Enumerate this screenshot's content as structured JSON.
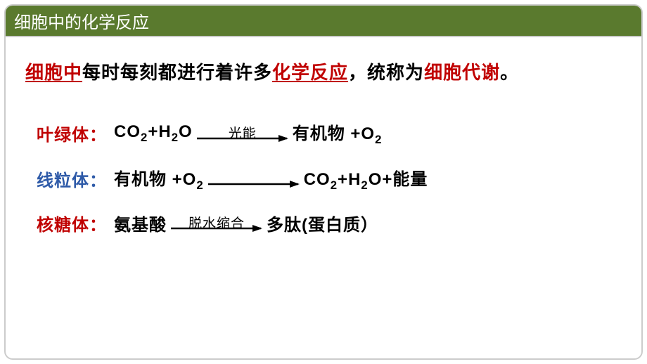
{
  "colors": {
    "header_bg": "#5a7a2e",
    "header_text": "#ffffff",
    "red": "#c00000",
    "black": "#000000",
    "blue": "#2e5aa8",
    "border": "#cccccc"
  },
  "header": {
    "title": "细胞中的化学反应"
  },
  "intro": {
    "p1": "细胞中",
    "p2": "每时每刻都进行着许多",
    "p3": "化学反应",
    "p4": "，统称为",
    "p5": "细胞代谢",
    "p6": "。"
  },
  "rows": [
    {
      "label": "叶绿体：",
      "label_color": "#c00000",
      "left_html": "CO<sub>2</sub>+H<sub>2</sub>O",
      "arrow_top": "光能",
      "arrow_width": 130,
      "right_html": "有机物 +O<sub>2</sub>"
    },
    {
      "label": "线粒体：",
      "label_color": "#2e5aa8",
      "left_html": "有机物 +O<sub>2</sub>",
      "arrow_top": "",
      "arrow_width": 130,
      "right_html": "CO<sub>2</sub>+H<sub>2</sub>O+能量"
    },
    {
      "label": "核糖体：",
      "label_color": "#c00000",
      "left_html": "氨基酸",
      "arrow_top": "脱水缩合",
      "arrow_width": 130,
      "right_html": "多肽(蛋白质）"
    }
  ]
}
